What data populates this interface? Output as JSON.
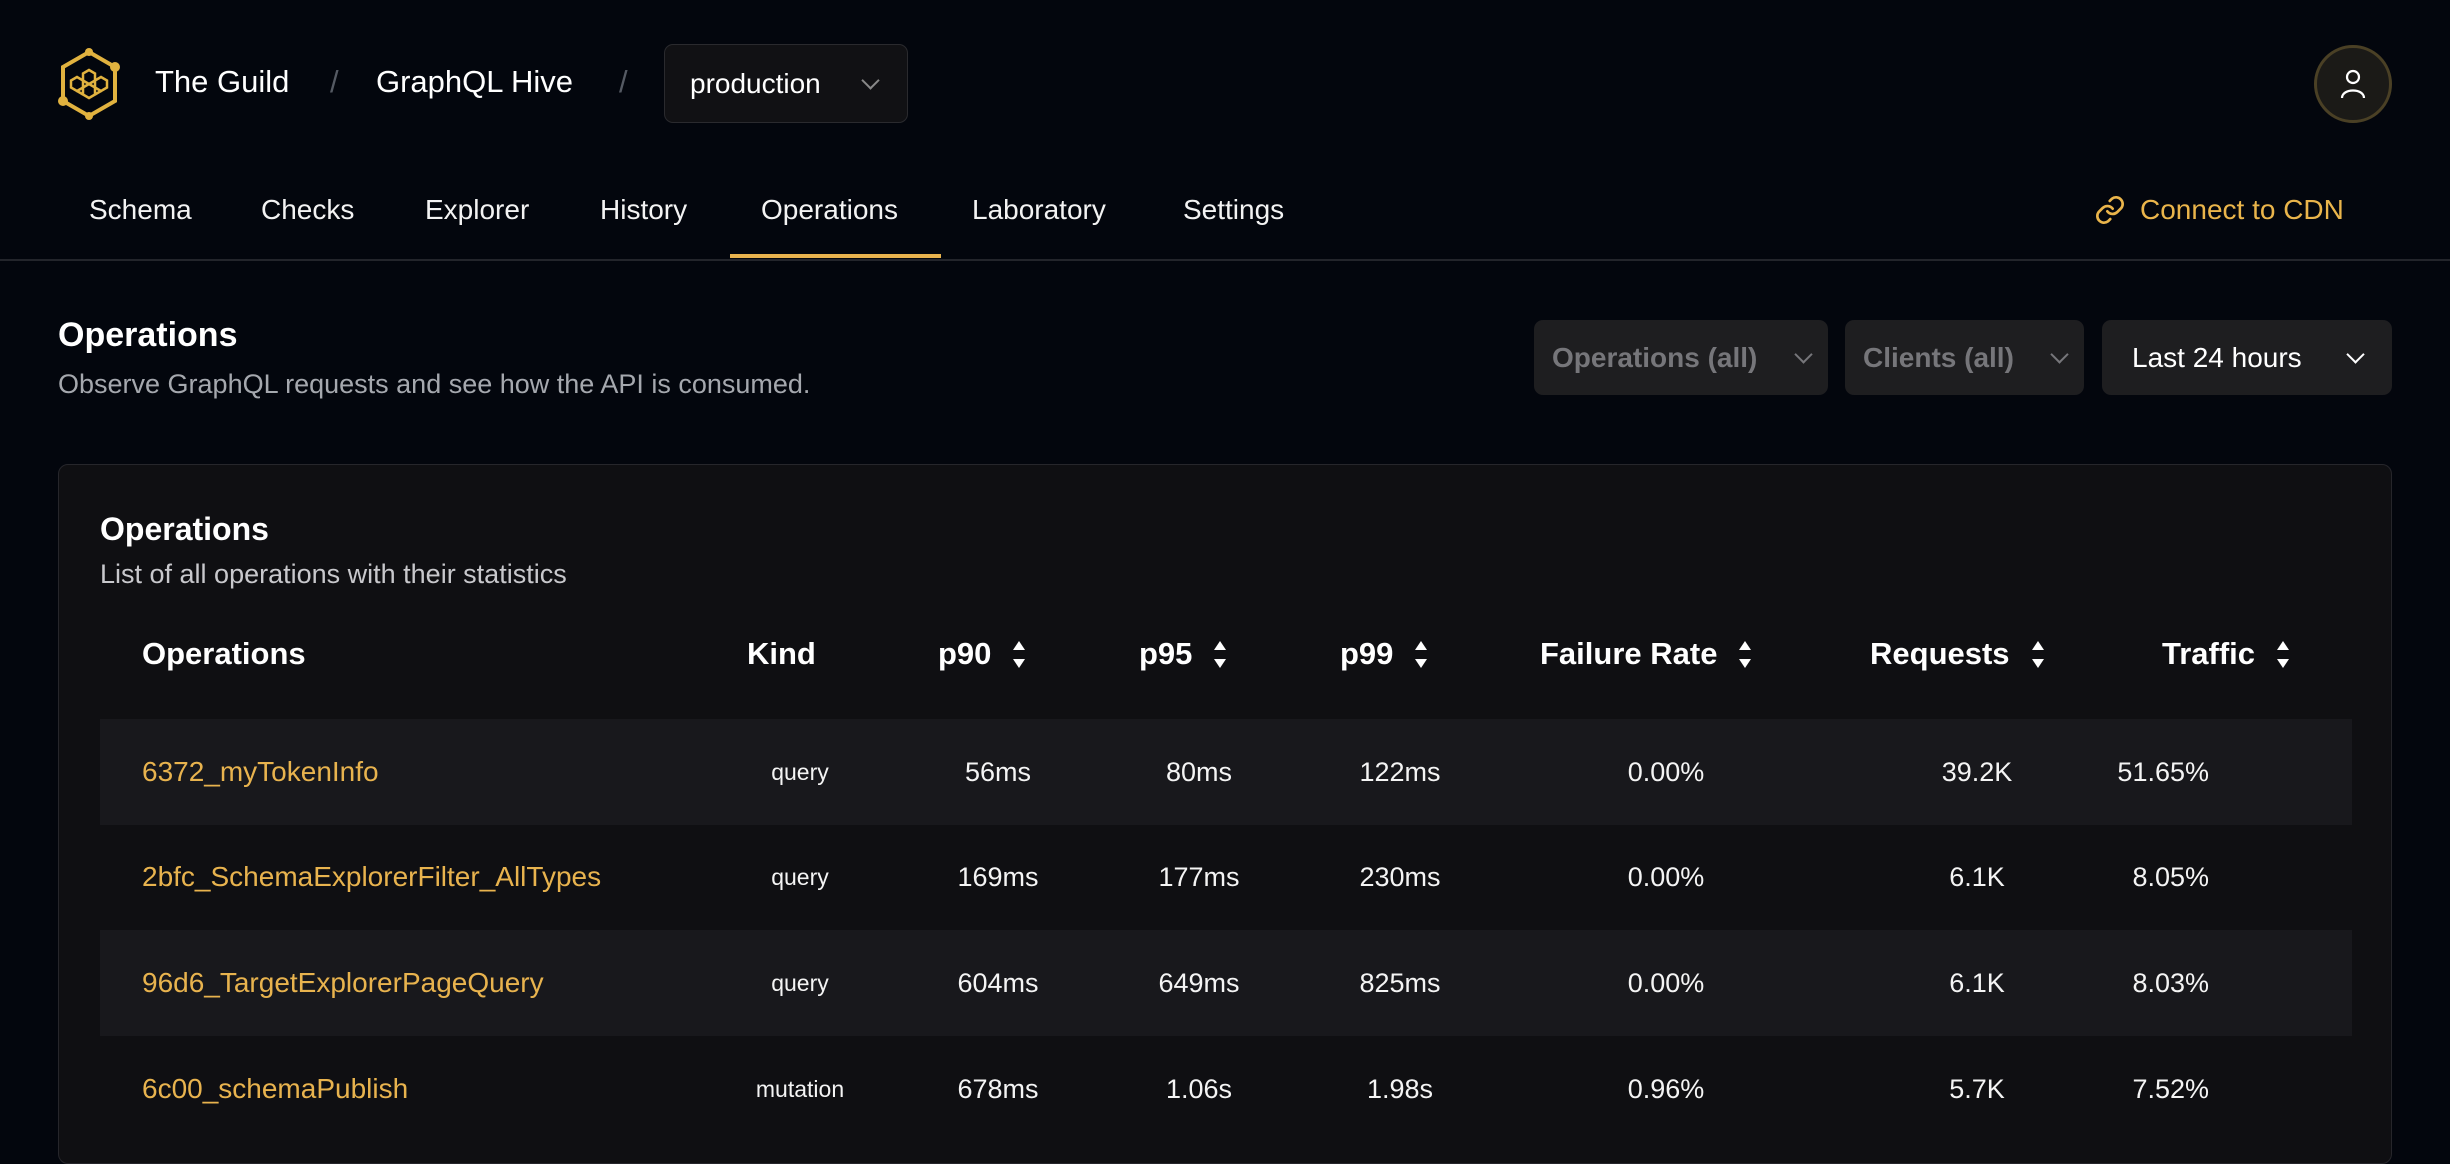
{
  "header": {
    "org": "The Guild",
    "project": "GraphQL Hive",
    "target": "production",
    "accent_color": "#eab54b"
  },
  "nav": {
    "tabs": [
      {
        "label": "Schema"
      },
      {
        "label": "Checks"
      },
      {
        "label": "Explorer"
      },
      {
        "label": "History"
      },
      {
        "label": "Operations",
        "active": true
      },
      {
        "label": "Laboratory"
      },
      {
        "label": "Settings"
      }
    ],
    "cdn_label": "Connect to CDN"
  },
  "page": {
    "title": "Operations",
    "subtitle": "Observe GraphQL requests and see how the API is consumed."
  },
  "filters": {
    "operations": "Operations (all)",
    "clients": "Clients (all)",
    "period": "Last 24 hours"
  },
  "card": {
    "title": "Operations",
    "subtitle": "List of all operations with their statistics"
  },
  "table": {
    "columns": [
      "Operations",
      "Kind",
      "p90",
      "p95",
      "p99",
      "Failure Rate",
      "Requests",
      "Traffic"
    ],
    "rows": [
      {
        "name": "6372_myTokenInfo",
        "kind": "query",
        "p90": "56ms",
        "p95": "80ms",
        "p99": "122ms",
        "failure": "0.00%",
        "requests": "39.2K",
        "traffic": "51.65%"
      },
      {
        "name": "2bfc_SchemaExplorerFilter_AllTypes",
        "kind": "query",
        "p90": "169ms",
        "p95": "177ms",
        "p99": "230ms",
        "failure": "0.00%",
        "requests": "6.1K",
        "traffic": "8.05%"
      },
      {
        "name": "96d6_TargetExplorerPageQuery",
        "kind": "query",
        "p90": "604ms",
        "p95": "649ms",
        "p99": "825ms",
        "failure": "0.00%",
        "requests": "6.1K",
        "traffic": "8.03%"
      },
      {
        "name": "6c00_schemaPublish",
        "kind": "mutation",
        "p90": "678ms",
        "p95": "1.06s",
        "p99": "1.98s",
        "failure": "0.96%",
        "requests": "5.7K",
        "traffic": "7.52%"
      }
    ]
  }
}
